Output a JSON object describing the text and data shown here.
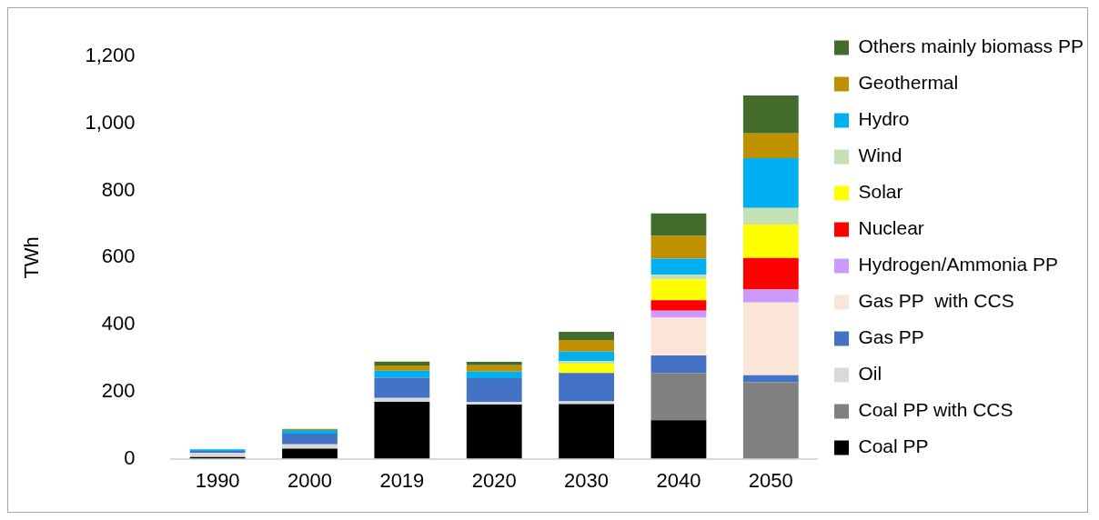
{
  "chart_data": {
    "type": "bar",
    "stacked": true,
    "ylabel": "TWh",
    "categories": [
      "1990",
      "2000",
      "2019",
      "2020",
      "2030",
      "2040",
      "2050"
    ],
    "ylim": [
      0,
      1200
    ],
    "yticks": [
      0,
      200,
      400,
      600,
      800,
      {
        "value": 1000,
        "label": "1,000"
      },
      {
        "value": 1200,
        "label": "1,200"
      }
    ],
    "grid": false,
    "legend": "right",
    "series": [
      {
        "name": "Coal PP",
        "color": "#000000",
        "values": [
          5,
          30,
          170,
          162,
          163,
          115,
          0
        ]
      },
      {
        "name": "Coal PP with CCS",
        "color": "#808080",
        "values": [
          0,
          0,
          0,
          0,
          0,
          141,
          228
        ]
      },
      {
        "name": "Oil",
        "color": "#d9d9d9",
        "values": [
          13,
          13,
          11,
          8,
          8,
          0,
          0
        ]
      },
      {
        "name": "Gas PP",
        "color": "#4472c4",
        "values": [
          5,
          32,
          61,
          70,
          85,
          52,
          21
        ]
      },
      {
        "name": "Gas PP  with CCS",
        "color": "#fbe5d6",
        "values": [
          0,
          0,
          0,
          0,
          0,
          113,
          217
        ]
      },
      {
        "name": "Hydrogen/Ammonia PP",
        "color": "#cc99ff",
        "values": [
          0,
          0,
          0,
          0,
          0,
          21,
          39
        ]
      },
      {
        "name": "Nuclear",
        "color": "#ff0000",
        "values": [
          0,
          0,
          0,
          0,
          0,
          31,
          94
        ]
      },
      {
        "name": "Solar",
        "color": "#ffff00",
        "values": [
          0,
          0,
          0,
          0,
          28,
          62,
          100
        ]
      },
      {
        "name": "Wind",
        "color": "#c5e0b4",
        "values": [
          0,
          0,
          0,
          0,
          8,
          14,
          49
        ]
      },
      {
        "name": "Hydro",
        "color": "#00b0f0",
        "values": [
          5,
          11,
          21,
          20,
          28,
          48,
          149
        ]
      },
      {
        "name": "Geothermal",
        "color": "#bf9000",
        "values": [
          0,
          3,
          15,
          19,
          34,
          68,
          74
        ]
      },
      {
        "name": "Others mainly biomass PP",
        "color": "#436b2b",
        "values": [
          0,
          0,
          12,
          10,
          25,
          67,
          113
        ]
      }
    ]
  }
}
